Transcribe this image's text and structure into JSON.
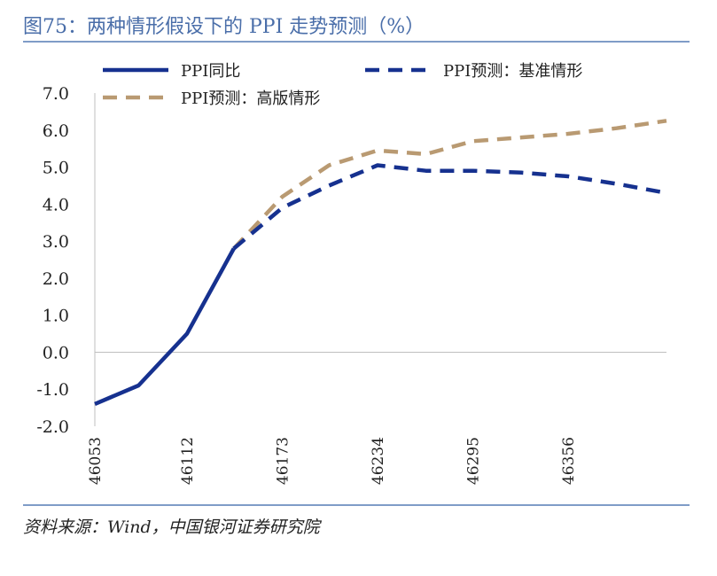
{
  "figure": {
    "title": "图75：两种情形假设下的 PPI 走势预测（%）",
    "source": "资料来源：Wind，中国银河证券研究院"
  },
  "chart_data": {
    "type": "line",
    "title": "",
    "xlabel": "",
    "ylabel": "",
    "ylim": [
      -2.0,
      7.0
    ],
    "xlim": [
      46053,
      46419
    ],
    "y_ticks": [
      "7.0",
      "6.0",
      "5.0",
      "4.0",
      "3.0",
      "2.0",
      "1.0",
      "0.0",
      "-1.0",
      "-2.0"
    ],
    "x_ticks": [
      "46053",
      "46112",
      "46173",
      "46234",
      "46295",
      "46356"
    ],
    "legend_position": "top",
    "grid": false,
    "series": [
      {
        "name": "PPI同比",
        "style": "solid",
        "color": "#16318f",
        "x": [
          46053,
          46081,
          46112,
          46142
        ],
        "y": [
          -1.4,
          -0.9,
          0.5,
          2.8
        ]
      },
      {
        "name": "PPI预测：基准情形",
        "style": "dashed",
        "color": "#16318f",
        "x": [
          46142,
          46173,
          46203,
          46234,
          46265,
          46295,
          46326,
          46356,
          46387,
          46419
        ],
        "y": [
          2.8,
          3.9,
          4.5,
          5.05,
          4.9,
          4.9,
          4.85,
          4.75,
          4.55,
          4.3
        ]
      },
      {
        "name": "PPI预测：高版情形",
        "style": "dashed",
        "color": "#b99a72",
        "x": [
          46142,
          46173,
          46203,
          46234,
          46265,
          46295,
          46326,
          46356,
          46387,
          46419
        ],
        "y": [
          2.8,
          4.2,
          5.05,
          5.45,
          5.35,
          5.7,
          5.8,
          5.9,
          6.05,
          6.25
        ]
      }
    ]
  }
}
